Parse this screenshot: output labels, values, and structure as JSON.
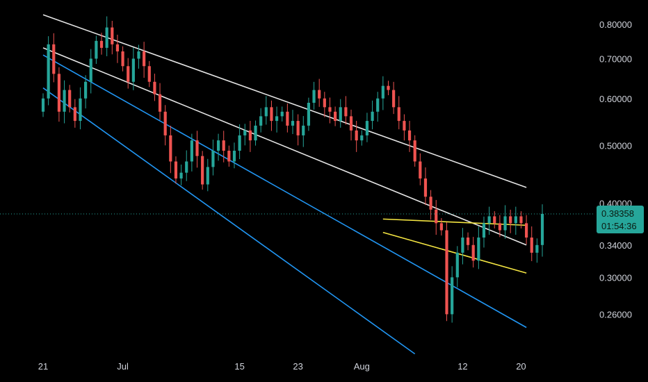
{
  "chart_data": {
    "type": "candlestick",
    "title": "",
    "scale": "log",
    "ylim": [
      0.23,
      0.86
    ],
    "y_ticks": [
      "0.80000",
      "0.70000",
      "0.60000",
      "0.50000",
      "0.40000",
      "0.34000",
      "0.30000",
      "0.26000"
    ],
    "x_ticks": [
      "21",
      "Jul",
      "15",
      "23",
      "Aug",
      "12",
      "20"
    ],
    "last_price": "0.38358",
    "countdown": "01:54:36",
    "close_series": [
      0.6,
      0.74,
      0.66,
      0.57,
      0.62,
      0.58,
      0.55,
      0.6,
      0.64,
      0.7,
      0.75,
      0.73,
      0.79,
      0.74,
      0.72,
      0.68,
      0.64,
      0.7,
      0.72,
      0.68,
      0.64,
      0.61,
      0.57,
      0.52,
      0.47,
      0.44,
      0.45,
      0.47,
      0.51,
      0.48,
      0.43,
      0.46,
      0.49,
      0.51,
      0.49,
      0.47,
      0.49,
      0.52,
      0.53,
      0.51,
      0.54,
      0.56,
      0.58,
      0.55,
      0.56,
      0.57,
      0.54,
      0.55,
      0.52,
      0.54,
      0.59,
      0.62,
      0.6,
      0.58,
      0.57,
      0.55,
      0.58,
      0.56,
      0.53,
      0.51,
      0.52,
      0.55,
      0.57,
      0.6,
      0.63,
      0.62,
      0.58,
      0.55,
      0.53,
      0.51,
      0.47,
      0.44,
      0.41,
      0.39,
      0.37,
      0.36,
      0.26,
      0.3,
      0.33,
      0.35,
      0.34,
      0.32,
      0.35,
      0.37,
      0.38,
      0.37,
      0.36,
      0.38,
      0.37,
      0.38,
      0.37,
      0.35,
      0.33,
      0.34,
      0.3836
    ],
    "colors": {
      "up": "#26a69a",
      "down": "#ef5350",
      "badge": "#26a69a",
      "line_white": "#e6e6e6",
      "line_blue": "#2196f3",
      "line_yellow": "#f5e642"
    }
  },
  "drawings": [
    {
      "kind": "trendline",
      "color": "#e6e6e6",
      "from": [
        0,
        0.83
      ],
      "to": [
        91,
        0.425
      ]
    },
    {
      "kind": "trendline",
      "color": "#e6e6e6",
      "from": [
        0,
        0.73
      ],
      "to": [
        91,
        0.34
      ]
    },
    {
      "kind": "trendline",
      "color": "#2196f3",
      "from": [
        0,
        0.71
      ],
      "to": [
        91,
        0.247
      ]
    },
    {
      "kind": "trendline",
      "color": "#2196f3",
      "from": [
        0,
        0.625
      ],
      "to": [
        70,
        0.223
      ]
    },
    {
      "kind": "trendline",
      "color": "#f5e642",
      "from": [
        64,
        0.376
      ],
      "to": [
        91,
        0.367
      ]
    },
    {
      "kind": "trendline",
      "color": "#f5e642",
      "from": [
        64,
        0.357
      ],
      "to": [
        91,
        0.305
      ]
    }
  ]
}
